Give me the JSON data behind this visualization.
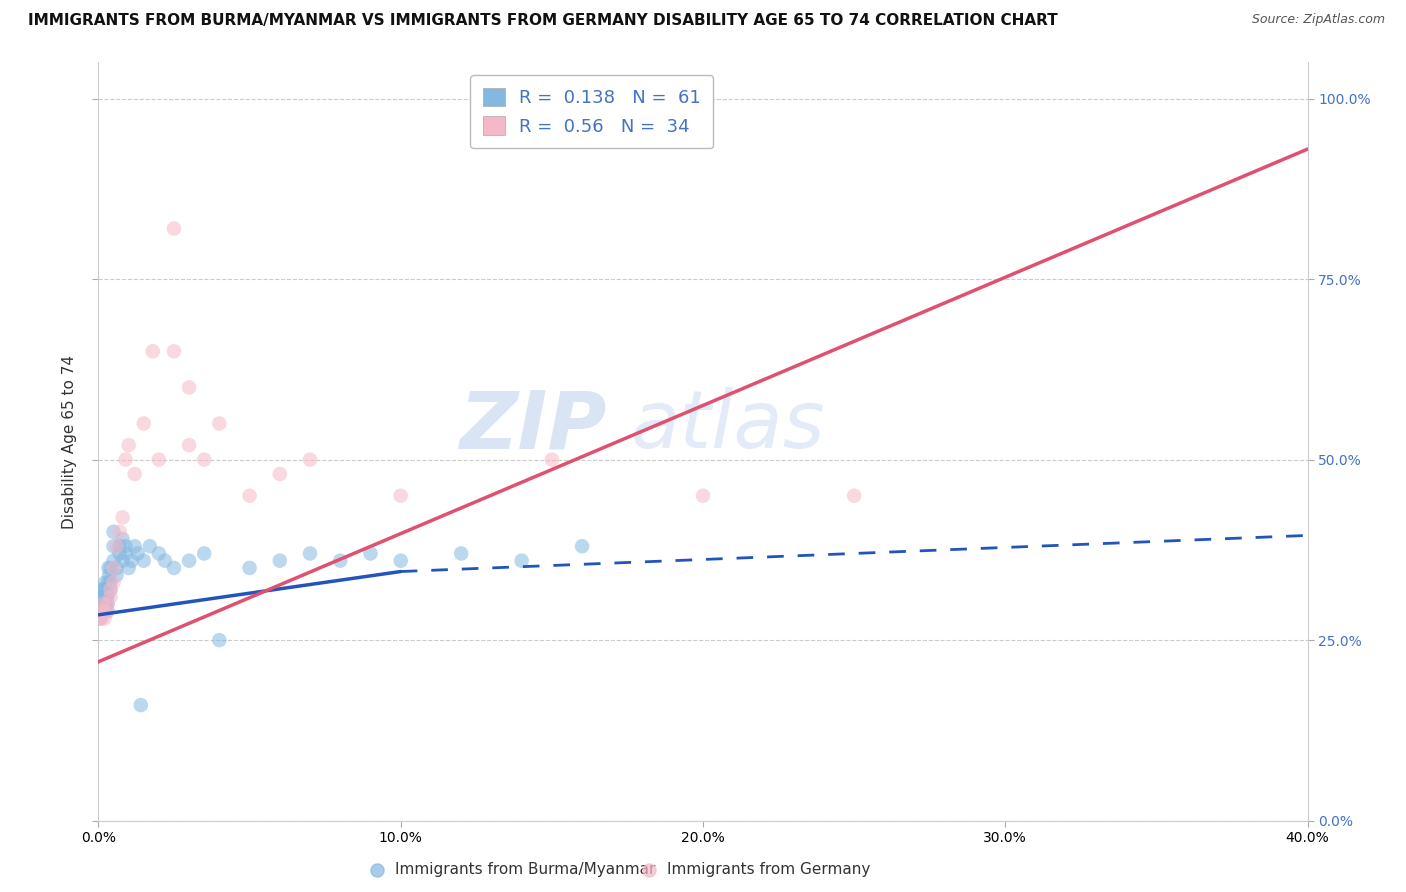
{
  "title": "IMMIGRANTS FROM BURMA/MYANMAR VS IMMIGRANTS FROM GERMANY DISABILITY AGE 65 TO 74 CORRELATION CHART",
  "source": "Source: ZipAtlas.com",
  "ylabel": "Disability Age 65 to 74",
  "xlim": [
    0.0,
    0.4
  ],
  "ylim": [
    0.0,
    1.05
  ],
  "xtick_vals": [
    0.0,
    0.1,
    0.2,
    0.3,
    0.4
  ],
  "xtick_labels": [
    "0.0%",
    "10.0%",
    "20.0%",
    "30.0%",
    "40.0%"
  ],
  "ytick_vals": [
    0.0,
    0.25,
    0.5,
    0.75,
    1.0
  ],
  "ytick_labels": [
    "0.0%",
    "25.0%",
    "50.0%",
    "75.0%",
    "100.0%"
  ],
  "legend_blue_label": "Immigrants from Burma/Myanmar",
  "legend_pink_label": "Immigrants from Germany",
  "R_blue": 0.138,
  "N_blue": 61,
  "R_pink": 0.56,
  "N_pink": 34,
  "blue_color": "#85b8e0",
  "pink_color": "#f5b8c8",
  "blue_line_color": "#2255bb",
  "pink_line_color": "#e05070",
  "title_fontsize": 11,
  "label_fontsize": 11,
  "tick_fontsize": 10,
  "tick_color": "#4472c4",
  "background_color": "#ffffff",
  "grid_color": "#cccccc",
  "blue_x": [
    0.0003,
    0.0005,
    0.0008,
    0.001,
    0.001,
    0.0012,
    0.0013,
    0.0015,
    0.0015,
    0.0017,
    0.0018,
    0.002,
    0.002,
    0.002,
    0.0022,
    0.0023,
    0.0025,
    0.0025,
    0.003,
    0.003,
    0.003,
    0.003,
    0.0032,
    0.0033,
    0.0035,
    0.004,
    0.004,
    0.004,
    0.005,
    0.005,
    0.005,
    0.006,
    0.006,
    0.007,
    0.007,
    0.008,
    0.008,
    0.009,
    0.009,
    0.01,
    0.011,
    0.012,
    0.013,
    0.014,
    0.015,
    0.017,
    0.02,
    0.022,
    0.025,
    0.03,
    0.035,
    0.04,
    0.05,
    0.06,
    0.07,
    0.08,
    0.09,
    0.1,
    0.12,
    0.14,
    0.16
  ],
  "blue_y": [
    0.29,
    0.28,
    0.3,
    0.3,
    0.31,
    0.32,
    0.29,
    0.3,
    0.31,
    0.32,
    0.3,
    0.29,
    0.31,
    0.3,
    0.32,
    0.33,
    0.31,
    0.3,
    0.29,
    0.3,
    0.31,
    0.32,
    0.33,
    0.35,
    0.34,
    0.32,
    0.33,
    0.35,
    0.36,
    0.38,
    0.4,
    0.34,
    0.35,
    0.37,
    0.38,
    0.36,
    0.39,
    0.37,
    0.38,
    0.35,
    0.36,
    0.38,
    0.37,
    0.16,
    0.36,
    0.38,
    0.37,
    0.36,
    0.35,
    0.36,
    0.37,
    0.25,
    0.35,
    0.36,
    0.37,
    0.36,
    0.37,
    0.36,
    0.37,
    0.36,
    0.38
  ],
  "pink_x": [
    0.0005,
    0.001,
    0.001,
    0.0015,
    0.002,
    0.002,
    0.003,
    0.003,
    0.004,
    0.004,
    0.005,
    0.005,
    0.006,
    0.007,
    0.008,
    0.009,
    0.01,
    0.012,
    0.015,
    0.018,
    0.02,
    0.025,
    0.025,
    0.03,
    0.03,
    0.035,
    0.04,
    0.05,
    0.06,
    0.07,
    0.1,
    0.15,
    0.2,
    0.25
  ],
  "pink_y": [
    0.28,
    0.29,
    0.28,
    0.3,
    0.28,
    0.29,
    0.3,
    0.29,
    0.32,
    0.31,
    0.35,
    0.33,
    0.38,
    0.4,
    0.42,
    0.5,
    0.52,
    0.48,
    0.55,
    0.65,
    0.5,
    0.65,
    0.82,
    0.52,
    0.6,
    0.5,
    0.55,
    0.45,
    0.48,
    0.5,
    0.45,
    0.5,
    0.45,
    0.45
  ],
  "blue_line_x0": 0.0,
  "blue_line_x_solid_end": 0.1,
  "blue_line_y0": 0.285,
  "blue_line_y_at_10": 0.345,
  "blue_line_y_at_40": 0.395,
  "pink_line_x0": 0.0,
  "pink_line_y0": 0.22,
  "pink_line_x1": 0.4,
  "pink_line_y1": 0.93
}
